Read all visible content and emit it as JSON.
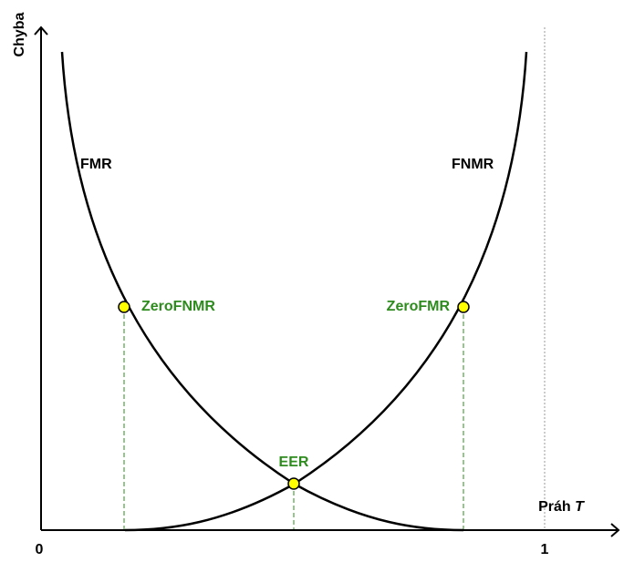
{
  "axes": {
    "y_label": "Chyba",
    "x_label": "Práh",
    "x_label_variable": "T",
    "x_start": "0",
    "x_end": "1"
  },
  "curves": {
    "left": "FMR",
    "right": "FNMR"
  },
  "points": {
    "zero_fnmr": "ZeroFNMR",
    "eer": "EER",
    "zero_fmr": "ZeroFMR"
  }
}
